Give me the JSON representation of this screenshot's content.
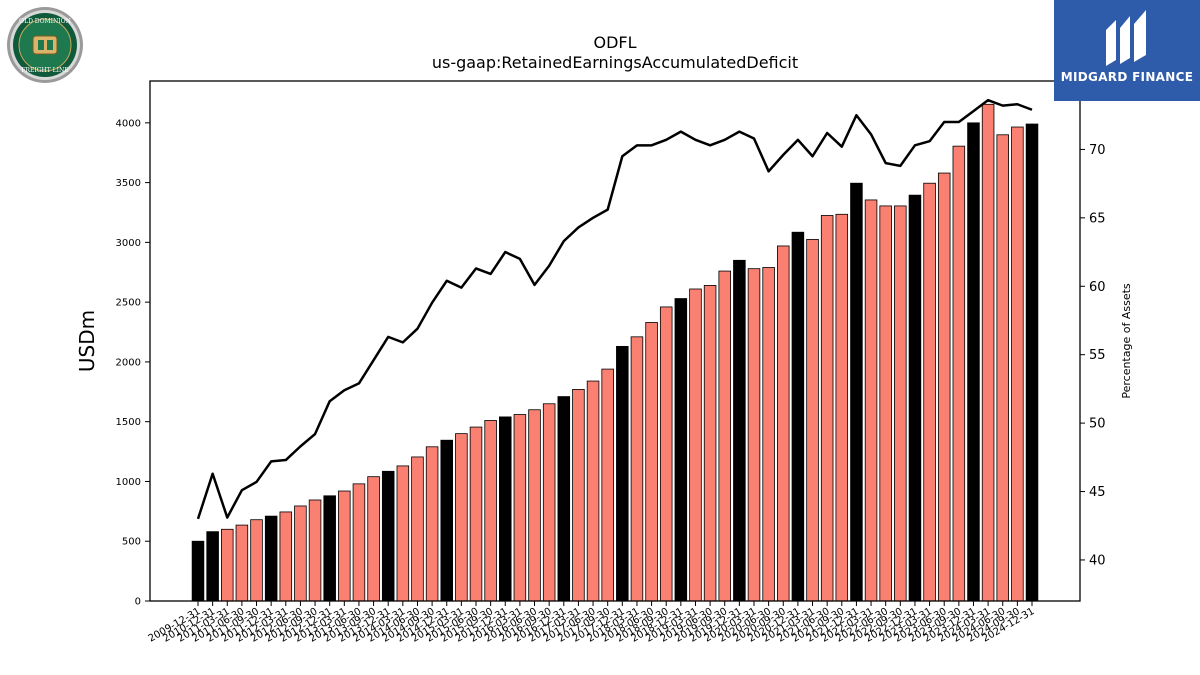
{
  "logos": {
    "company_logo_text": [
      "OLD DOMINION",
      "FREIGHT LINE"
    ],
    "brand_name": "MIDGARD FINANCE"
  },
  "colors": {
    "bar_highlight": "#000000",
    "bar_default": "#fa8072",
    "line": "#000000",
    "brand_bg": "#2f5bab"
  },
  "chart_data": {
    "type": "bar",
    "title": "ODFL",
    "subtitle": "us-gaap:RetainedEarningsAccumulatedDeficit",
    "ylabel": "USDm",
    "y2label": "Percentage of Assets",
    "ylim": [
      0,
      4350
    ],
    "y2lim": [
      37,
      75
    ],
    "yticks": [
      0,
      500,
      1000,
      1500,
      2000,
      2500,
      3000,
      3500,
      4000
    ],
    "y2ticks": [
      40,
      45,
      50,
      55,
      60,
      65,
      70
    ],
    "grid": false,
    "categories": [
      "2009-12-31",
      "2010-12-31",
      "2011-03-31",
      "2011-06-30",
      "2011-09-30",
      "2011-12-31",
      "2012-03-31",
      "2012-06-30",
      "2012-09-30",
      "2012-12-31",
      "2013-03-31",
      "2013-06-30",
      "2013-09-30",
      "2013-12-31",
      "2014-03-31",
      "2014-06-30",
      "2014-09-30",
      "2014-12-31",
      "2015-03-31",
      "2015-06-30",
      "2015-09-30",
      "2015-12-31",
      "2016-03-31",
      "2016-06-30",
      "2016-09-30",
      "2016-12-31",
      "2017-03-31",
      "2017-06-30",
      "2017-09-30",
      "2017-12-31",
      "2018-03-31",
      "2018-06-30",
      "2018-09-30",
      "2018-12-31",
      "2019-03-31",
      "2019-06-30",
      "2019-09-30",
      "2019-12-31",
      "2020-03-31",
      "2020-06-30",
      "2020-09-30",
      "2020-12-31",
      "2021-03-31",
      "2021-06-30",
      "2021-09-30",
      "2021-12-31",
      "2022-03-31",
      "2022-06-30",
      "2022-09-30",
      "2022-12-31",
      "2023-03-31",
      "2023-06-30",
      "2023-09-30",
      "2023-12-31",
      "2024-03-31",
      "2024-06-30",
      "2024-09-30",
      "2024-12-31"
    ],
    "series": [
      {
        "type": "bar",
        "values": [
          500,
          580,
          600,
          635,
          680,
          710,
          745,
          795,
          845,
          880,
          920,
          980,
          1040,
          1085,
          1130,
          1205,
          1290,
          1345,
          1400,
          1455,
          1510,
          1540,
          1560,
          1600,
          1650,
          1710,
          1770,
          1840,
          1940,
          2130,
          2210,
          2330,
          2460,
          2530,
          2610,
          2640,
          2760,
          2850,
          2780,
          2790,
          2970,
          3085,
          3025,
          3225,
          3235,
          3495,
          3355,
          3305,
          3305,
          3395,
          3495,
          3580,
          3805,
          4000,
          4155,
          3900,
          3965,
          3990
        ],
        "highlight": [
          true,
          true,
          false,
          false,
          false,
          true,
          false,
          false,
          false,
          true,
          false,
          false,
          false,
          true,
          false,
          false,
          false,
          true,
          false,
          false,
          false,
          true,
          false,
          false,
          false,
          true,
          false,
          false,
          false,
          true,
          false,
          false,
          false,
          true,
          false,
          false,
          false,
          true,
          false,
          false,
          false,
          true,
          false,
          false,
          false,
          true,
          false,
          false,
          false,
          true,
          false,
          false,
          false,
          true,
          false,
          false,
          false,
          true
        ]
      },
      {
        "type": "line",
        "axis": "right",
        "values": [
          43.0,
          46.3,
          43.1,
          45.1,
          45.7,
          47.2,
          47.3,
          48.3,
          49.2,
          51.6,
          52.4,
          52.9,
          54.6,
          56.3,
          55.9,
          56.9,
          58.8,
          60.4,
          59.9,
          61.3,
          60.9,
          62.5,
          62.0,
          60.1,
          61.5,
          63.3,
          64.3,
          65.0,
          65.6,
          69.5,
          70.3,
          70.3,
          70.7,
          71.3,
          70.7,
          70.3,
          70.7,
          71.3,
          70.8,
          68.4,
          69.6,
          70.7,
          69.5,
          71.2,
          70.2,
          72.5,
          71.1,
          69.0,
          68.8,
          70.3,
          70.6,
          72.0,
          72.0,
          72.8,
          73.6,
          73.2,
          73.3,
          72.9
        ]
      }
    ]
  }
}
